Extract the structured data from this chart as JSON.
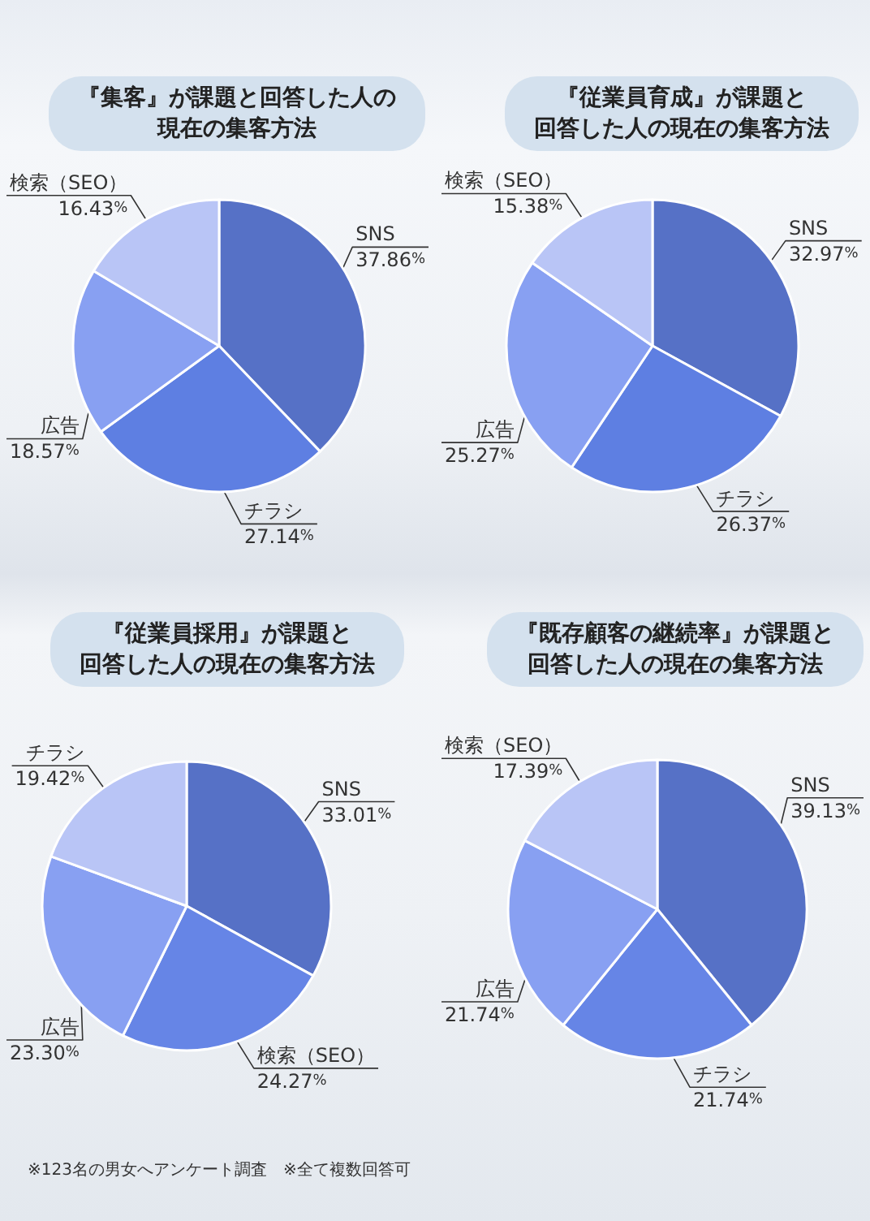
{
  "chart_data": [
    {
      "type": "pie",
      "title": "『集客』が課題と回答した人の",
      "subtitle": "現在の集客方法",
      "categories": [
        "SNS",
        "チラシ",
        "広告",
        "検索（SEO）"
      ],
      "values": [
        37.86,
        27.14,
        18.57,
        16.43
      ],
      "value_labels": [
        "37.86%",
        "27.14%",
        "18.57%",
        "16.43%"
      ],
      "colors": [
        "#5671c6",
        "#5e7fe2",
        "#88a0f2",
        "#b9c5f6"
      ]
    },
    {
      "type": "pie",
      "title": "『従業員育成』が課題と",
      "subtitle": "回答した人の現在の集客方法",
      "categories": [
        "SNS",
        "チラシ",
        "広告",
        "検索（SEO）"
      ],
      "values": [
        32.97,
        26.37,
        25.27,
        15.38
      ],
      "value_labels": [
        "32.97%",
        "26.37%",
        "25.27%",
        "15.38%"
      ],
      "colors": [
        "#5671c6",
        "#5e7fe2",
        "#88a0f2",
        "#b9c5f6"
      ]
    },
    {
      "type": "pie",
      "title": "『従業員採用』が課題と",
      "subtitle": "回答した人の現在の集客方法",
      "categories": [
        "SNS",
        "検索（SEO）",
        "広告",
        "チラシ"
      ],
      "values": [
        33.01,
        24.27,
        23.3,
        19.42
      ],
      "value_labels": [
        "33.01%",
        "24.27%",
        "23.30%",
        "19.42%"
      ],
      "colors": [
        "#5671c6",
        "#6685e6",
        "#88a0f2",
        "#b9c5f6"
      ],
      "annotations": [
        "※123名の男女へアンケート調査　※全て複数回答可"
      ]
    },
    {
      "type": "pie",
      "title": "『既存顧客の継続率』が課題と",
      "subtitle": "回答した人の現在の集客方法",
      "categories": [
        "SNS",
        "チラシ",
        "広告",
        "検索（SEO）"
      ],
      "values": [
        39.13,
        21.74,
        21.74,
        17.39
      ],
      "value_labels": [
        "39.13%",
        "21.74%",
        "21.74%",
        "17.39%"
      ],
      "colors": [
        "#5671c6",
        "#6685e6",
        "#88a0f2",
        "#b9c5f6"
      ]
    }
  ]
}
